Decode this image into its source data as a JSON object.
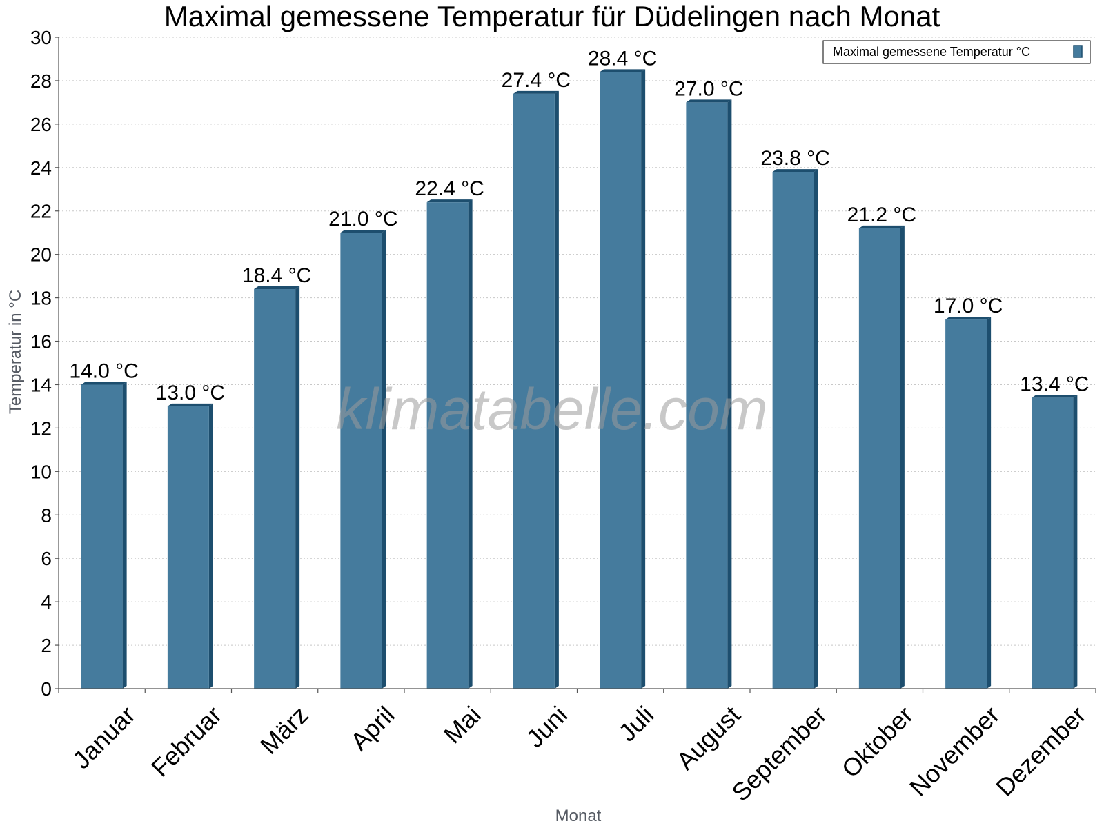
{
  "chart_data": {
    "type": "bar",
    "title": "Maximal gemessene Temperatur für Düdelingen nach Monat",
    "xlabel": "Monat",
    "ylabel": "Temperatur in °C",
    "ylim": [
      0,
      30
    ],
    "yticks": [
      0,
      2,
      4,
      6,
      8,
      10,
      12,
      14,
      16,
      18,
      20,
      22,
      24,
      26,
      28,
      30
    ],
    "grid": true,
    "legend_position": "top-right",
    "categories": [
      "Januar",
      "Februar",
      "März",
      "April",
      "Mai",
      "Juni",
      "Juli",
      "August",
      "September",
      "Oktober",
      "November",
      "Dezember"
    ],
    "series": [
      {
        "name": "Maximal gemessene Temperatur °C",
        "values": [
          14.0,
          13.0,
          18.4,
          21.0,
          22.4,
          27.4,
          28.4,
          27.0,
          23.8,
          21.2,
          17.0,
          13.4
        ],
        "data_labels": [
          "14.0 °C",
          "13.0 °C",
          "18.4 °C",
          "21.0 °C",
          "22.4 °C",
          "27.4 °C",
          "28.4 °C",
          "27.0 °C",
          "23.8 °C",
          "21.2 °C",
          "17.0 °C",
          "13.4 °C"
        ],
        "color": "#457b9d",
        "side_color": "#1d4e6e"
      }
    ],
    "watermark": "klimatabelle.com"
  }
}
